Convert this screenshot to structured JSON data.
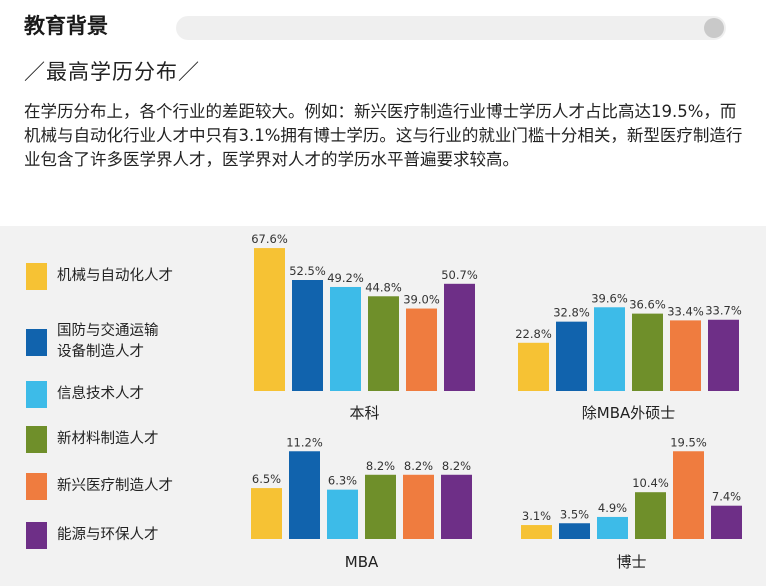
{
  "header": {
    "section_title": "教育背景",
    "subtitle": "／最高学历分布／",
    "intro": "在学历分布上，各个行业的差距较大。例如：新兴医疗制造行业博士学历人才占比高达19.5%，而机械与自动化行业人才中只有3.1%拥有博士学历。这与行业的就业门槛十分相关，新型医疗制造行业包含了许多医学界人才，医学界对人才的学历水平普遍要求较高。"
  },
  "legend": [
    {
      "label": "机械与自动化人才",
      "color": "#f6c234"
    },
    {
      "label": "国防与交通运输\n设备制造人才",
      "color": "#1163ad"
    },
    {
      "label": "信息技术人才",
      "color": "#3dbbe8"
    },
    {
      "label": "新材料制造人才",
      "color": "#6f8f2a"
    },
    {
      "label": "新兴医疗制造人才",
      "color": "#ef7c3f"
    },
    {
      "label": "能源与环保人才",
      "color": "#6e2f87"
    }
  ],
  "chart_data": [
    {
      "type": "bar",
      "xlabel": "本科",
      "ylim": [
        0,
        70
      ],
      "values": [
        67.6,
        52.5,
        49.2,
        44.8,
        39.0,
        50.7
      ],
      "labels": [
        "67.6%",
        "52.5%",
        "49.2%",
        "44.8%",
        "39.0%",
        "50.7%"
      ]
    },
    {
      "type": "bar",
      "xlabel": "除MBA外硕士",
      "ylim": [
        0,
        70
      ],
      "values": [
        22.8,
        32.8,
        39.6,
        36.6,
        33.4,
        33.7
      ],
      "labels": [
        "22.8%",
        "32.8%",
        "39.6%",
        "36.6%",
        "33.4%",
        "33.7%"
      ]
    },
    {
      "type": "bar",
      "xlabel": "MBA",
      "ylim": [
        0,
        12
      ],
      "values": [
        6.5,
        11.2,
        6.3,
        8.2,
        8.2,
        8.2
      ],
      "labels": [
        "6.5%",
        "11.2%",
        "6.3%",
        "8.2%",
        "8.2%",
        "8.2%"
      ]
    },
    {
      "type": "bar",
      "xlabel": "博士",
      "ylim": [
        0,
        20
      ],
      "values": [
        3.1,
        3.5,
        4.9,
        10.4,
        19.5,
        7.4
      ],
      "labels": [
        "3.1%",
        "3.5%",
        "4.9%",
        "10.4%",
        "19.5%",
        "7.4%"
      ]
    }
  ]
}
